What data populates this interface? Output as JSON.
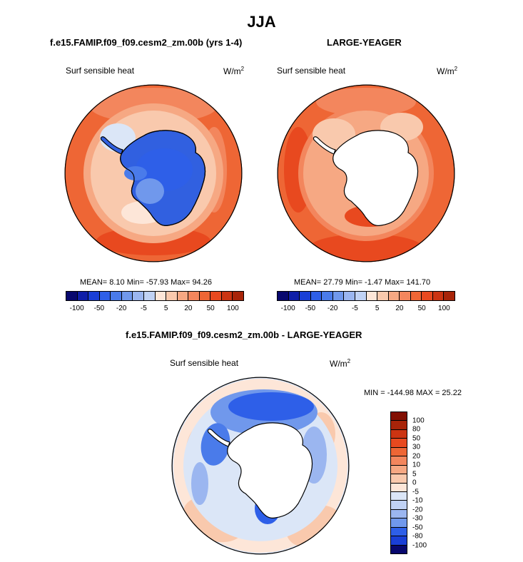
{
  "page": {
    "title": "JJA",
    "colors": {
      "-9": "#08086e",
      "-8": "#0f1ea8",
      "-7": "#1a3fd6",
      "-6": "#2e5fe8",
      "-5": "#4a7bea",
      "-4": "#7098ec",
      "-3": "#9bb6f0",
      "-2": "#c0d2f4",
      "-1": "#dbe6f7",
      "0": "#fde6d8",
      "1": "#f9c9ad",
      "2": "#f6a883",
      "3": "#f3865d",
      "4": "#ee6635",
      "5": "#e8491f",
      "6": "#cc3412",
      "7": "#a82409",
      "8": "#820f02"
    }
  },
  "panels": [
    {
      "title": "f.e15.FAMIP.f09_f09.cesm2_zm.00b (yrs 1-4)",
      "variable": "Surf sensible heat",
      "units": "W/m",
      "units_sup": "2",
      "stats": "MEAN=  8.10  Min= -57.93  Max=  94.26",
      "land_fill": "#3160e0"
    },
    {
      "title": "LARGE-YEAGER",
      "variable": "Surf sensible heat",
      "units": "W/m",
      "units_sup": "2",
      "stats": "MEAN=  27.79  Min=  -1.47  Max= 141.70",
      "land_fill": "#ffffff"
    },
    {
      "title": "f.e15.FAMIP.f09_f09.cesm2_zm.00b - LARGE-YEAGER",
      "variable": "Surf sensible heat",
      "units": "W/m",
      "units_sup": "2",
      "stats": "MIN = -144.98  MAX =  25.22",
      "land_fill": "#ffffff"
    }
  ],
  "chart_data": [
    {
      "type": "heatmap",
      "projection": "south-polar-stereographic",
      "title": "f.e15.FAMIP.f09_f09.cesm2_zm.00b (yrs 1-4)",
      "variable": "Surf sensible heat",
      "units": "W/m2",
      "stats": {
        "mean": 8.1,
        "min": -57.93,
        "max": 94.26
      },
      "colorbar": {
        "orientation": "horizontal",
        "levels": [
          -100,
          -75,
          -50,
          -30,
          -20,
          -10,
          -5,
          0,
          5,
          10,
          20,
          30,
          50,
          75,
          100
        ],
        "labels": [
          "-100",
          "-50",
          "-20",
          "-5",
          "5",
          "20",
          "50",
          "100"
        ],
        "color_keys": [
          "-9",
          "-8",
          "-7",
          "-6",
          "-5",
          "-4",
          "-3",
          "-2",
          "0",
          "1",
          "2",
          "3",
          "4",
          "5",
          "6",
          "7"
        ]
      }
    },
    {
      "type": "heatmap",
      "projection": "south-polar-stereographic",
      "title": "LARGE-YEAGER",
      "variable": "Surf sensible heat",
      "units": "W/m2",
      "stats": {
        "mean": 27.79,
        "min": -1.47,
        "max": 141.7
      },
      "colorbar": {
        "orientation": "horizontal",
        "levels": [
          -100,
          -75,
          -50,
          -30,
          -20,
          -10,
          -5,
          0,
          5,
          10,
          20,
          30,
          50,
          75,
          100
        ],
        "labels": [
          "-100",
          "-50",
          "-20",
          "-5",
          "5",
          "20",
          "50",
          "100"
        ],
        "color_keys": [
          "-9",
          "-8",
          "-7",
          "-6",
          "-5",
          "-4",
          "-3",
          "-2",
          "0",
          "1",
          "2",
          "3",
          "4",
          "5",
          "6",
          "7"
        ]
      }
    },
    {
      "type": "heatmap",
      "projection": "south-polar-stereographic",
      "title": "f.e15.FAMIP.f09_f09.cesm2_zm.00b - LARGE-YEAGER",
      "variable": "Surf sensible heat",
      "units": "W/m2",
      "stats": {
        "min": -144.98,
        "max": 25.22
      },
      "colorbar": {
        "orientation": "vertical",
        "labels": [
          "100",
          "80",
          "50",
          "30",
          "20",
          "10",
          "5",
          "0",
          "-5",
          "-10",
          "-20",
          "-30",
          "-50",
          "-80",
          "-100"
        ],
        "color_keys": [
          "8",
          "7",
          "6",
          "5",
          "4",
          "3",
          "2",
          "1",
          "0",
          "-1",
          "-2",
          "-3",
          "-4",
          "-6",
          "-7",
          "-9"
        ]
      }
    }
  ]
}
